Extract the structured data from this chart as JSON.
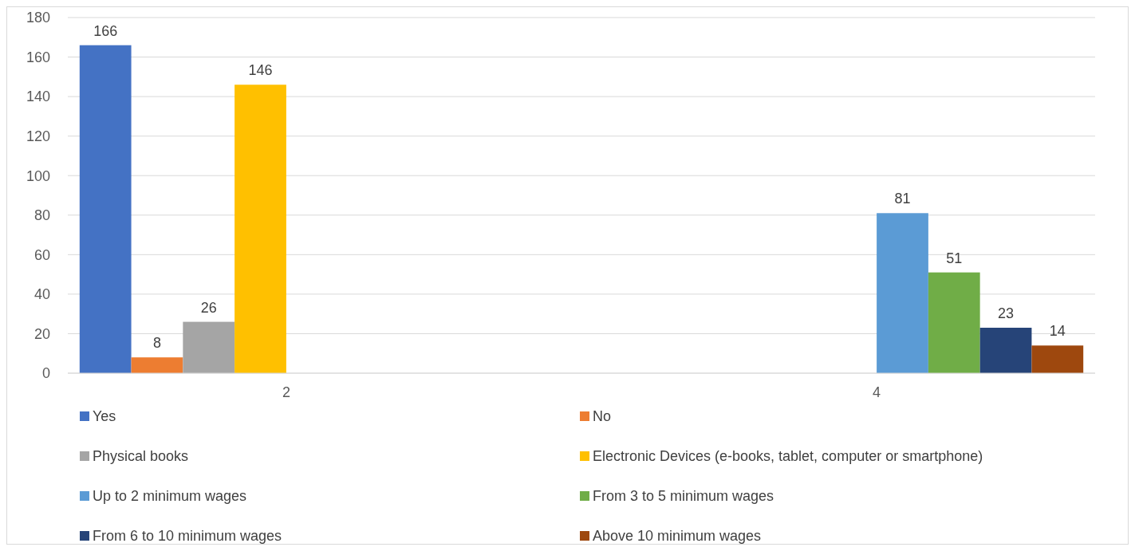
{
  "chart_data": {
    "type": "bar",
    "categories": [
      "2",
      "4"
    ],
    "series": [
      {
        "name": "Yes",
        "color": "#4472c4",
        "values": [
          166,
          null
        ]
      },
      {
        "name": "No",
        "color": "#ed7d31",
        "values": [
          8,
          null
        ]
      },
      {
        "name": "Physical books",
        "color": "#a5a5a5",
        "values": [
          26,
          null
        ]
      },
      {
        "name": "Electronic Devices (e-books, tablet, computer or smartphone)",
        "color": "#ffc000",
        "values": [
          146,
          null
        ]
      },
      {
        "name": "Up to 2 minimum wages",
        "color": "#5b9bd5",
        "values": [
          null,
          81
        ]
      },
      {
        "name": "From 3 to 5 minimum wages",
        "color": "#70ad47",
        "values": [
          null,
          51
        ]
      },
      {
        "name": "From 6 to 10 minimum wages",
        "color": "#264478",
        "values": [
          null,
          23
        ]
      },
      {
        "name": "Above 10 minimum wages",
        "color": "#9e480e",
        "values": [
          null,
          14
        ]
      }
    ],
    "ylim": [
      0,
      180
    ],
    "yticks": [
      0,
      20,
      40,
      60,
      80,
      100,
      120,
      140,
      160,
      180
    ],
    "grid": "y",
    "data_labels": true,
    "legend": "bottom"
  }
}
